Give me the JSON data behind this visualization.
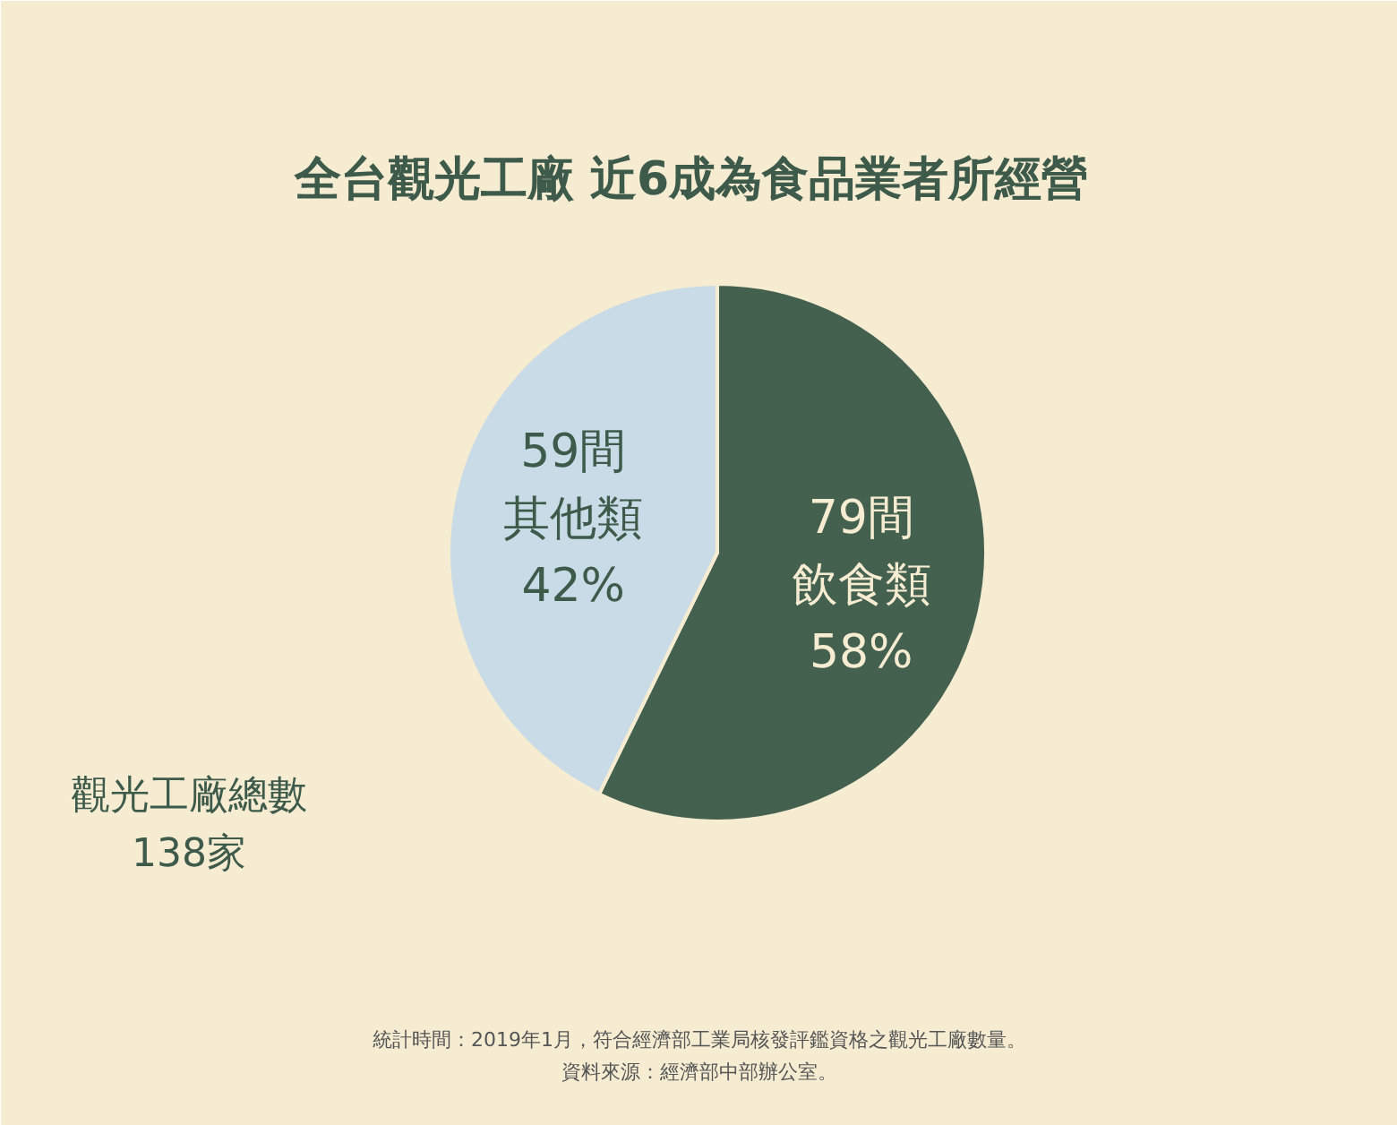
{
  "chart_data": {
    "type": "pie",
    "title": "全台觀光工廠  近6成為食品業者所經營",
    "categories": [
      "飲食類",
      "其他類"
    ],
    "values": [
      79,
      59
    ],
    "colors": [
      "#44604f",
      "#c8dbe6"
    ],
    "value_labels": [
      "79間",
      "59間"
    ],
    "annotations": [
      "58%",
      "42%",
      "觀光工廠總數\n138家",
      "統計時間：2019年1月，符合經濟部工業局核發評鑑資格之觀光工廠數量。",
      "資料來源：經濟部中部辦公室。"
    ]
  }
}
